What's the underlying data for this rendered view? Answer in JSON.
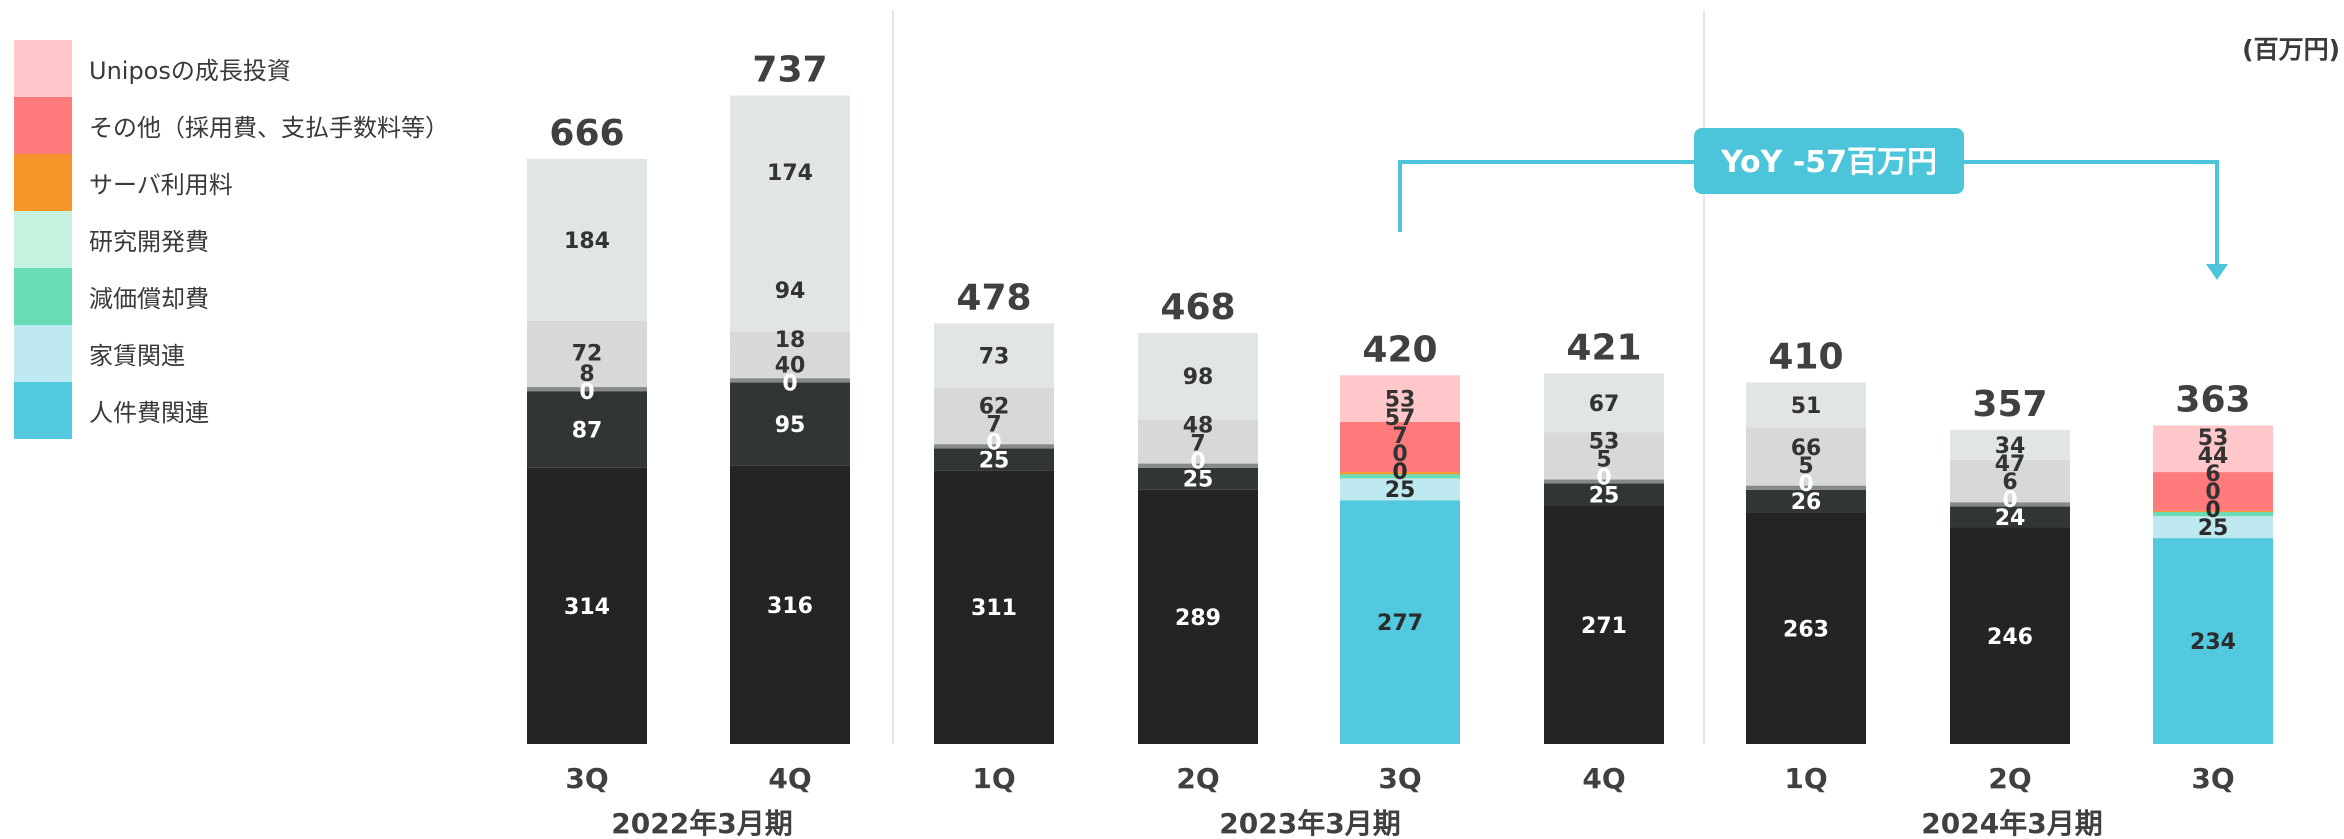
{
  "unit_label": "(百万円)",
  "colors": {
    "segments": {
      "jinken": {
        "dark": "#232424",
        "highlight": "#52c9df"
      },
      "yachin": {
        "dark": "#323536",
        "highlight": "#bfe9f0"
      },
      "genka": {
        "dark": "#858a89",
        "highlight": "#67dcb6"
      },
      "kenkyu": {
        "dark": "#d7d9d8",
        "highlight": "#c4f2de"
      },
      "server": {
        "dark": "#d7d9d8",
        "highlight": "#f7952b"
      },
      "other": {
        "dark": "#e1e6e5",
        "highlight": "#ff7a7a"
      },
      "unipos": {
        "dark": "#e1e6e5",
        "highlight": "#ffc7c9"
      }
    },
    "callout": "#4cc4da"
  },
  "chart_data": {
    "type": "bar",
    "stacked": true,
    "categories": [
      "3Q",
      "4Q",
      "1Q",
      "2Q",
      "3Q",
      "4Q",
      "1Q",
      "2Q",
      "3Q"
    ],
    "groups": [
      {
        "label": "2022年3月期",
        "count": 2
      },
      {
        "label": "2023年3月期",
        "count": 4
      },
      {
        "label": "2024年3月期",
        "count": 3
      }
    ],
    "highlight_bars": [
      4,
      8
    ],
    "legend": [
      "Uniposの成長投資",
      "その他（採用費、支払手数料等）",
      "サーバ利用料",
      "研究開発費",
      "減価償却費",
      "家賃関連",
      "人件費関連"
    ],
    "series": [
      {
        "key": "jinken",
        "name": "人件費関連",
        "values": [
          314,
          316,
          311,
          289,
          277,
          271,
          263,
          246,
          234
        ]
      },
      {
        "key": "yachin",
        "name": "家賃関連",
        "values": [
          87,
          95,
          25,
          25,
          25,
          25,
          26,
          24,
          25
        ]
      },
      {
        "key": "genka",
        "name": "減価償却費",
        "values": [
          0,
          0,
          0,
          0,
          0,
          0,
          0,
          0,
          0
        ]
      },
      {
        "key": "kenkyu",
        "name": "研究開発費",
        "values": [
          8,
          40,
          7,
          7,
          0,
          5,
          5,
          6,
          0
        ]
      },
      {
        "key": "server",
        "name": "サーバ利用料",
        "values": [
          72,
          18,
          62,
          48,
          7,
          53,
          66,
          47,
          6
        ]
      },
      {
        "key": "other",
        "name": "その他（採用費、支払手数料等）",
        "values": [
          184,
          94,
          73,
          98,
          57,
          67,
          51,
          34,
          44
        ]
      },
      {
        "key": "unipos",
        "name": "Uniposの成長投資",
        "values": [
          null,
          174,
          null,
          null,
          53,
          null,
          null,
          null,
          53
        ]
      }
    ],
    "totals": [
      666,
      737,
      478,
      468,
      420,
      421,
      410,
      357,
      363
    ],
    "ylim": [
      0,
      760
    ],
    "annotation": {
      "text": "YoY -57百万円",
      "from_bar": 4,
      "to_bar": 8
    }
  }
}
